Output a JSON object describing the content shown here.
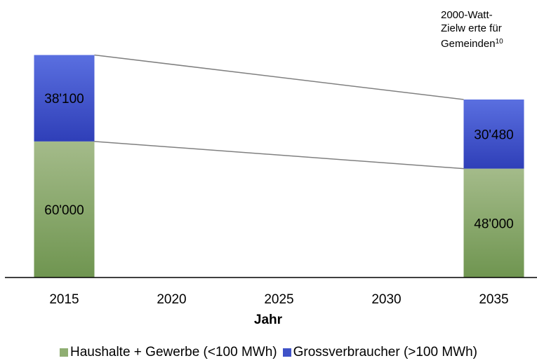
{
  "chart_data": {
    "type": "bar",
    "stacked": true,
    "categories": [
      "2015",
      "2020",
      "2025",
      "2030",
      "2035"
    ],
    "xlabel": "Jahr",
    "ylabel": "",
    "ylim": [
      0,
      110000
    ],
    "grid": false,
    "legend_position": "bottom",
    "series": [
      {
        "name": "Haushalte + Gewerbe (<100 MWh)",
        "values": [
          60000,
          null,
          null,
          null,
          48000
        ],
        "labels": [
          "60'000",
          "",
          "",
          "",
          "48'000"
        ],
        "color": "#7f9f60"
      },
      {
        "name": "Grossverbraucher (>100 MWh)",
        "values": [
          38100,
          null,
          null,
          null,
          30480
        ],
        "labels": [
          "38'100",
          "",
          "",
          "",
          "30'480"
        ],
        "color": "#3f52c8"
      }
    ],
    "connector_color": "#808080",
    "axis_color": "#000000"
  },
  "annotation": {
    "line1": "2000-Watt-",
    "line2": "Zielw erte für",
    "line3": "Gemeinden",
    "sup": "10"
  }
}
